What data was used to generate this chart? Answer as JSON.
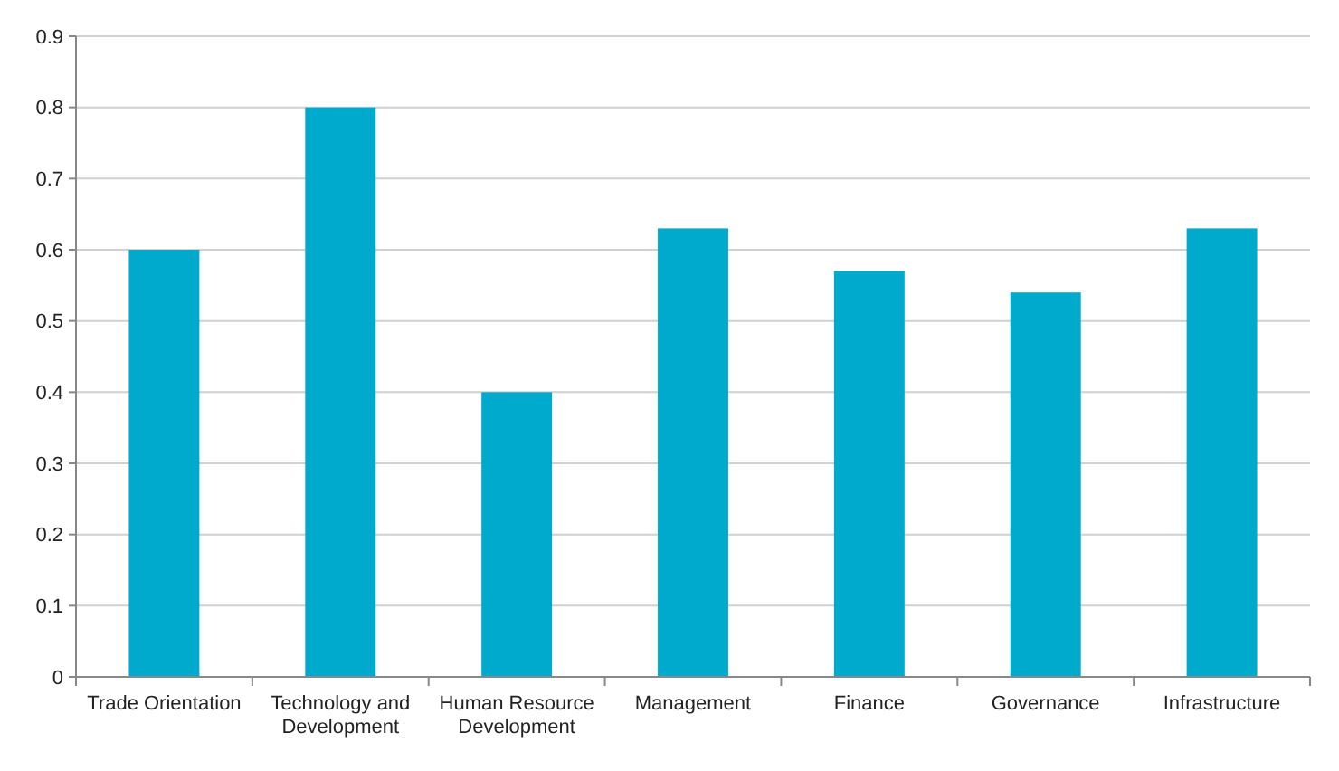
{
  "chart_data": {
    "type": "bar",
    "categories": [
      "Trade Orientation",
      "Technology and Development",
      "Human Resource Development",
      "Management",
      "Finance",
      "Governance",
      "Infrastructure"
    ],
    "values": [
      0.6,
      0.8,
      0.4,
      0.63,
      0.57,
      0.54,
      0.63
    ],
    "color": "#00aacc",
    "ylim": [
      0,
      0.9
    ],
    "yticks": [
      0,
      0.1,
      0.2,
      0.3,
      0.4,
      0.5,
      0.6,
      0.7,
      0.8,
      0.9
    ],
    "grid": "y"
  }
}
